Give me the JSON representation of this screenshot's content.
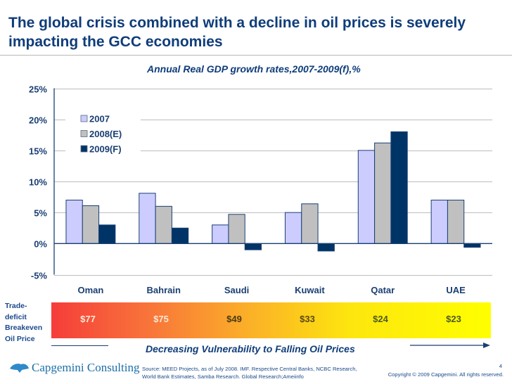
{
  "slide": {
    "title": "The global crisis combined with a decline in oil prices is severely impacting the GCC economies",
    "page_number": "4",
    "copyright": "Copyright © 2009 Capgemini. All rights reserved.",
    "source": "Source: MEED Projects, as of July 2008. IMF. Respective Central Banks, NCBC Research, World Bank Estimates, Samba Research. Global Research;Ameiinfo",
    "logo_text": "Capgemini Consulting"
  },
  "colors": {
    "title": "#0f3d7a",
    "series_2007": "#ccccff",
    "series_2008": "#c0c0c0",
    "series_2009": "#003366",
    "bar_outline": "#1a3f73",
    "gridline": "#bdbdbd"
  },
  "chart_data": {
    "type": "bar",
    "title": "Annual Real GDP growth rates,2007-2009(f),%",
    "xlabel": "",
    "ylabel": "",
    "categories": [
      "Oman",
      "Bahrain",
      "Saudi",
      "Kuwait",
      "Qatar",
      "UAE"
    ],
    "series": [
      {
        "name": "2007",
        "values": [
          7.0,
          8.1,
          3.0,
          5.0,
          15.0,
          7.0
        ]
      },
      {
        "name": "2008(E)",
        "values": [
          6.1,
          6.0,
          4.7,
          6.4,
          16.2,
          7.0
        ]
      },
      {
        "name": "2009(F)",
        "values": [
          3.0,
          2.5,
          -1.0,
          -1.2,
          18.0,
          -0.6
        ]
      }
    ],
    "ylim": [
      -5,
      25
    ],
    "yticks": [
      25,
      20,
      15,
      10,
      5,
      0,
      -5
    ],
    "ytick_labels": [
      "25%",
      "20%",
      "15%",
      "10%",
      "5%",
      "0%",
      "-5%"
    ],
    "grid": true,
    "legend_position": "top-left"
  },
  "breakeven": {
    "label_lines": [
      "Trade-",
      "deficit",
      "Breakeven",
      "Oil Price"
    ],
    "prices": [
      "$77",
      "$75",
      "$49",
      "$33",
      "$24",
      "$23"
    ],
    "caption": "Decreasing Vulnerability to Falling Oil Prices"
  }
}
